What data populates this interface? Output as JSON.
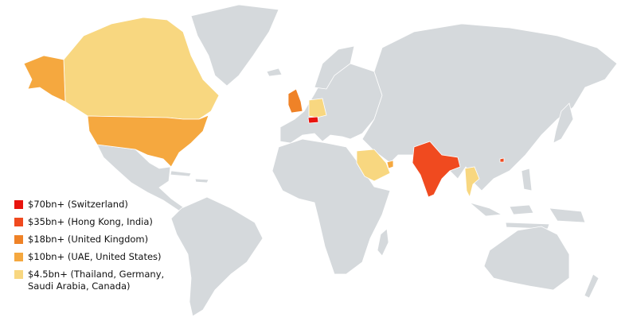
{
  "legend": [
    {
      "label": "$70bn+ (Switzerland)",
      "color": "#e8140e"
    },
    {
      "label": "$35bn+ (Hong Kong, India)",
      "color": "#f04a1f"
    },
    {
      "label": "$18bn+ (United Kingdom)",
      "color": "#ef8227"
    },
    {
      "label": "$10bn+ (UAE, United States)",
      "color": "#f5a83f"
    },
    {
      "label": "$4.5bn+ (Thailand, Germany, Saudi Arabia, Canada)",
      "color": "#f8d780"
    }
  ]
}
